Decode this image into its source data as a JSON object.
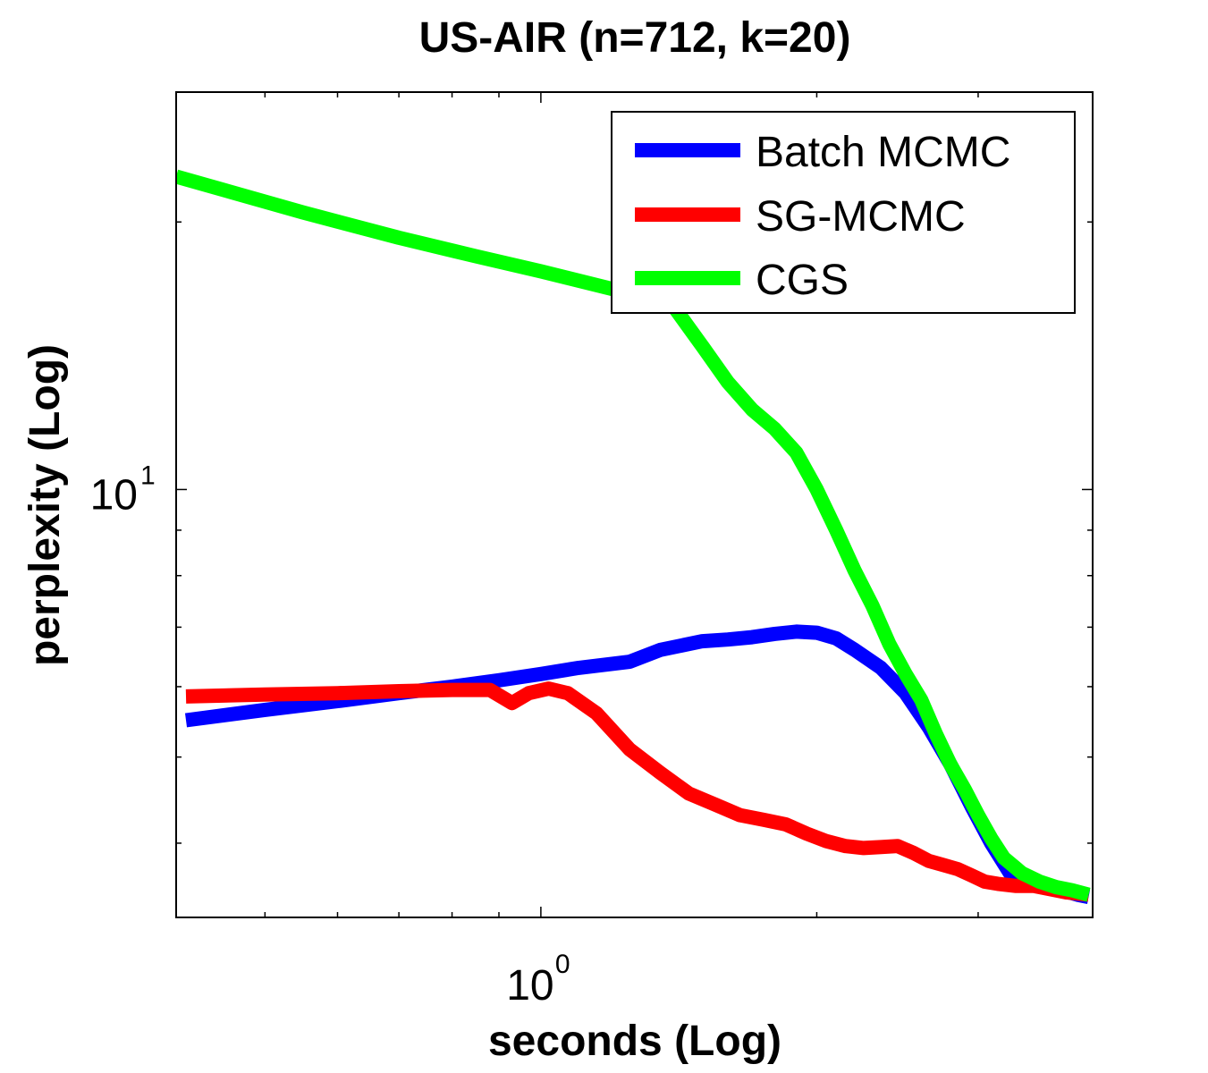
{
  "chart_data": {
    "type": "line",
    "title": "US-AIR (n=712, k=20)",
    "xlabel": "seconds (Log)",
    "ylabel": "perplexity (Log)",
    "x_scale": "log",
    "y_scale": "log",
    "xlim": [
      0.4,
      4.0
    ],
    "ylim": [
      3.3,
      28
    ],
    "x_ticks": [
      {
        "base": "10",
        "exp": "0",
        "value": 1
      }
    ],
    "y_ticks": [
      {
        "base": "10",
        "exp": "1",
        "value": 10
      }
    ],
    "legend_position": "top-right",
    "grid": false,
    "series": [
      {
        "name": "Batch MCMC",
        "color": "#0000ff",
        "points": [
          [
            0.41,
            5.5
          ],
          [
            0.5,
            5.65
          ],
          [
            0.6,
            5.78
          ],
          [
            0.7,
            5.9
          ],
          [
            0.8,
            6.0
          ],
          [
            0.9,
            6.1
          ],
          [
            1.0,
            6.2
          ],
          [
            1.1,
            6.3
          ],
          [
            1.25,
            6.4
          ],
          [
            1.35,
            6.6
          ],
          [
            1.5,
            6.75
          ],
          [
            1.6,
            6.78
          ],
          [
            1.7,
            6.82
          ],
          [
            1.8,
            6.88
          ],
          [
            1.9,
            6.92
          ],
          [
            2.0,
            6.9
          ],
          [
            2.1,
            6.8
          ],
          [
            2.2,
            6.6
          ],
          [
            2.35,
            6.3
          ],
          [
            2.5,
            5.9
          ],
          [
            2.65,
            5.4
          ],
          [
            2.8,
            4.9
          ],
          [
            2.95,
            4.4
          ],
          [
            3.1,
            4.0
          ],
          [
            3.25,
            3.7
          ],
          [
            3.4,
            3.6
          ],
          [
            3.55,
            3.57
          ],
          [
            3.7,
            3.54
          ],
          [
            3.85,
            3.5
          ],
          [
            3.96,
            3.48
          ]
        ]
      },
      {
        "name": "SG-MCMC",
        "color": "#ff0000",
        "points": [
          [
            0.41,
            5.85
          ],
          [
            0.5,
            5.88
          ],
          [
            0.6,
            5.9
          ],
          [
            0.7,
            5.93
          ],
          [
            0.8,
            5.95
          ],
          [
            0.88,
            5.95
          ],
          [
            0.93,
            5.75
          ],
          [
            0.97,
            5.9
          ],
          [
            1.02,
            5.97
          ],
          [
            1.07,
            5.9
          ],
          [
            1.15,
            5.6
          ],
          [
            1.25,
            5.1
          ],
          [
            1.35,
            4.8
          ],
          [
            1.45,
            4.55
          ],
          [
            1.55,
            4.42
          ],
          [
            1.65,
            4.3
          ],
          [
            1.75,
            4.25
          ],
          [
            1.85,
            4.2
          ],
          [
            1.95,
            4.1
          ],
          [
            2.05,
            4.02
          ],
          [
            2.15,
            3.97
          ],
          [
            2.25,
            3.95
          ],
          [
            2.35,
            3.96
          ],
          [
            2.45,
            3.97
          ],
          [
            2.55,
            3.9
          ],
          [
            2.65,
            3.82
          ],
          [
            2.75,
            3.78
          ],
          [
            2.85,
            3.74
          ],
          [
            2.95,
            3.68
          ],
          [
            3.05,
            3.62
          ],
          [
            3.15,
            3.6
          ],
          [
            3.3,
            3.58
          ],
          [
            3.45,
            3.58
          ],
          [
            3.6,
            3.55
          ],
          [
            3.75,
            3.52
          ],
          [
            3.96,
            3.5
          ]
        ]
      },
      {
        "name": "CGS",
        "color": "#00ff00",
        "points": [
          [
            0.4,
            22.5
          ],
          [
            0.55,
            20.5
          ],
          [
            0.7,
            19.2
          ],
          [
            0.85,
            18.3
          ],
          [
            1.0,
            17.6
          ],
          [
            1.2,
            16.8
          ],
          [
            1.35,
            16.3
          ],
          [
            1.4,
            16.0
          ],
          [
            1.5,
            14.5
          ],
          [
            1.6,
            13.2
          ],
          [
            1.7,
            12.3
          ],
          [
            1.8,
            11.7
          ],
          [
            1.9,
            11.0
          ],
          [
            2.0,
            10.0
          ],
          [
            2.1,
            9.0
          ],
          [
            2.2,
            8.1
          ],
          [
            2.3,
            7.4
          ],
          [
            2.4,
            6.7
          ],
          [
            2.5,
            6.2
          ],
          [
            2.6,
            5.8
          ],
          [
            2.7,
            5.3
          ],
          [
            2.8,
            4.9
          ],
          [
            2.9,
            4.6
          ],
          [
            3.0,
            4.3
          ],
          [
            3.1,
            4.05
          ],
          [
            3.2,
            3.85
          ],
          [
            3.35,
            3.7
          ],
          [
            3.5,
            3.62
          ],
          [
            3.65,
            3.57
          ],
          [
            3.8,
            3.54
          ],
          [
            3.96,
            3.5
          ]
        ]
      }
    ]
  }
}
